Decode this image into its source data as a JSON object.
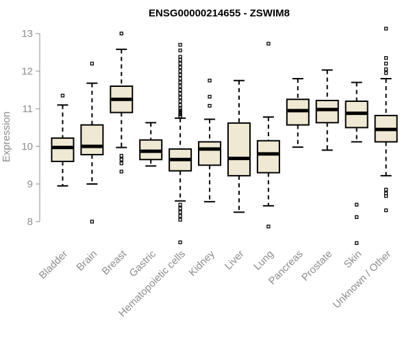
{
  "chart_data": {
    "type": "boxplot",
    "title": "ENSG00000214655 - ZSWIM8",
    "xlabel": "",
    "ylabel": "Expression",
    "ylim": [
      7.3,
      13.3
    ],
    "yticks": [
      8,
      9,
      10,
      11,
      12,
      13
    ],
    "categories": [
      "Bladder",
      "Brain",
      "Breast",
      "Gastric",
      "Hematopoietic cells",
      "Kidney",
      "Liver",
      "Lung",
      "Pancreas",
      "Prostate",
      "Skin",
      "Unknown / Other"
    ],
    "boxes": [
      {
        "name": "Bladder",
        "min": 8.95,
        "q1": 9.6,
        "median": 9.97,
        "q3": 10.22,
        "max": 11.1,
        "outliers": [
          11.35
        ]
      },
      {
        "name": "Brain",
        "min": 9.0,
        "q1": 9.78,
        "median": 10.0,
        "q3": 10.57,
        "max": 11.68,
        "outliers": [
          12.2,
          8.0
        ]
      },
      {
        "name": "Breast",
        "min": 9.97,
        "q1": 10.9,
        "median": 11.25,
        "q3": 11.6,
        "max": 12.58,
        "outliers": [
          13.0,
          9.75,
          9.65,
          9.55,
          9.33
        ]
      },
      {
        "name": "Gastric",
        "min": 9.48,
        "q1": 9.65,
        "median": 9.87,
        "q3": 10.17,
        "max": 10.63,
        "outliers": []
      },
      {
        "name": "Hematopoietic cells",
        "min": 8.55,
        "q1": 9.35,
        "median": 9.65,
        "q3": 9.93,
        "max": 10.75,
        "outliers": [
          12.7,
          12.55,
          12.38,
          12.3,
          12.2,
          12.1,
          12.0,
          11.9,
          11.8,
          11.7,
          11.6,
          11.5,
          11.4,
          11.3,
          11.2,
          11.1,
          11.0,
          10.95,
          10.9,
          10.85,
          10.8,
          8.45,
          8.35,
          8.25,
          8.15,
          8.05,
          7.45
        ]
      },
      {
        "name": "Kidney",
        "min": 8.53,
        "q1": 9.5,
        "median": 9.93,
        "q3": 10.12,
        "max": 10.72,
        "outliers": [
          11.75,
          11.32,
          11.08
        ]
      },
      {
        "name": "Liver",
        "min": 8.25,
        "q1": 9.22,
        "median": 9.68,
        "q3": 10.62,
        "max": 11.75,
        "outliers": []
      },
      {
        "name": "Lung",
        "min": 8.42,
        "q1": 9.3,
        "median": 9.8,
        "q3": 10.15,
        "max": 10.78,
        "outliers": [
          12.73,
          7.87
        ]
      },
      {
        "name": "Pancreas",
        "min": 9.98,
        "q1": 10.57,
        "median": 10.95,
        "q3": 11.25,
        "max": 11.8,
        "outliers": []
      },
      {
        "name": "Prostate",
        "min": 9.9,
        "q1": 10.63,
        "median": 10.98,
        "q3": 11.22,
        "max": 12.03,
        "outliers": []
      },
      {
        "name": "Skin",
        "min": 10.12,
        "q1": 10.5,
        "median": 10.88,
        "q3": 11.2,
        "max": 11.7,
        "outliers": [
          8.45,
          8.12,
          7.43
        ]
      },
      {
        "name": "Unknown / Other",
        "min": 9.22,
        "q1": 10.12,
        "median": 10.45,
        "q3": 10.82,
        "max": 11.8,
        "outliers": [
          13.13,
          12.35,
          12.2,
          12.05,
          11.95,
          8.85,
          8.75,
          8.68,
          8.3
        ]
      }
    ]
  }
}
